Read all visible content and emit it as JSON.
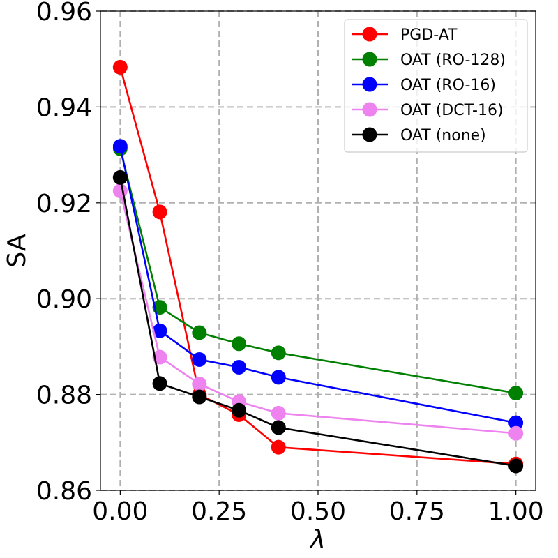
{
  "chart_data": {
    "type": "line",
    "title": "",
    "xlabel": "λ",
    "ylabel": "SA",
    "xlim": [
      -0.05,
      1.05
    ],
    "ylim": [
      0.86,
      0.96
    ],
    "grid": true,
    "legend_position": "top-right",
    "x_ticks": [
      0.0,
      0.25,
      0.5,
      0.75,
      1.0
    ],
    "x_tick_labels": [
      "0.00",
      "0.25",
      "0.50",
      "0.75",
      "1.00"
    ],
    "y_ticks": [
      0.86,
      0.88,
      0.9,
      0.92,
      0.94,
      0.96
    ],
    "y_tick_labels": [
      "0.86",
      "0.88",
      "0.90",
      "0.92",
      "0.94",
      "0.96"
    ],
    "x": [
      0.0,
      0.1,
      0.2,
      0.3,
      0.4,
      1.0
    ],
    "series": [
      {
        "name": "PGD-AT",
        "color": "#ff0000",
        "values": [
          0.9483,
          0.9181,
          0.88,
          0.8758,
          0.869,
          0.8655
        ]
      },
      {
        "name": "OAT (RO-128)",
        "color": "#008000",
        "values": [
          0.9313,
          0.8982,
          0.8929,
          0.8906,
          0.8887,
          0.8803
        ]
      },
      {
        "name": "OAT (RO-16)",
        "color": "#0000ff",
        "values": [
          0.9318,
          0.8933,
          0.8873,
          0.8857,
          0.8836,
          0.8741
        ]
      },
      {
        "name": "OAT (DCT-16)",
        "color": "#ee82ee",
        "values": [
          0.9225,
          0.8878,
          0.8822,
          0.8785,
          0.8761,
          0.8719
        ]
      },
      {
        "name": "OAT (none)",
        "color": "#000000",
        "values": [
          0.9253,
          0.8823,
          0.8795,
          0.8767,
          0.8731,
          0.8651
        ]
      }
    ]
  }
}
